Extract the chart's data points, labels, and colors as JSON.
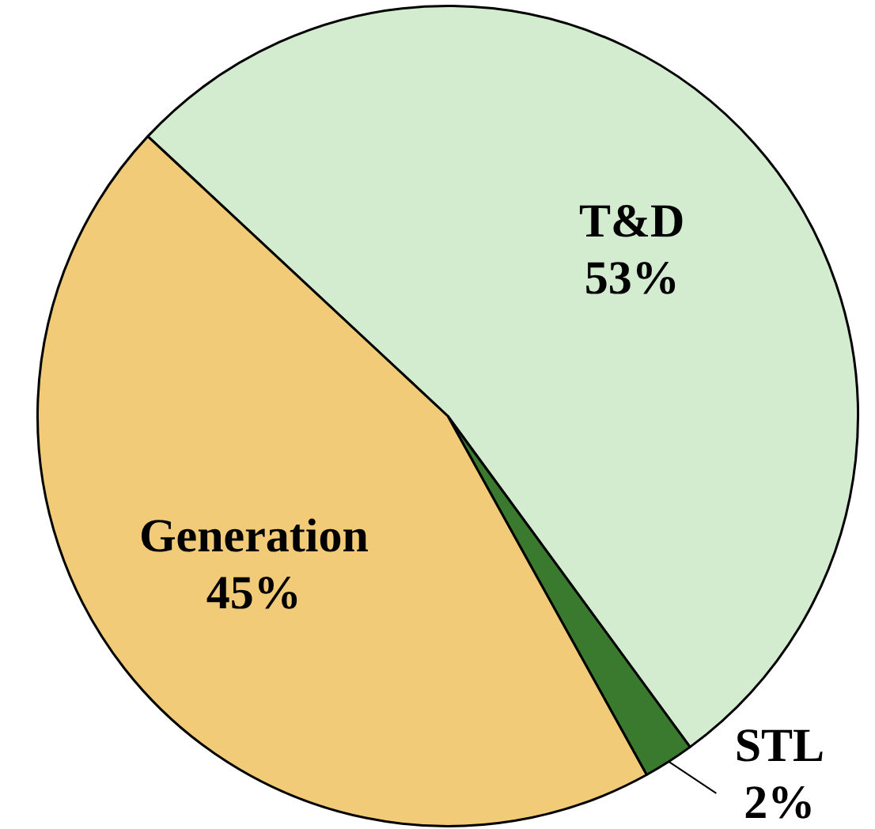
{
  "chart_data": {
    "type": "pie",
    "categories": [
      "T&D",
      "STL",
      "Generation"
    ],
    "values": [
      53,
      2,
      45
    ],
    "value_labels": [
      "53%",
      "2%",
      "45%"
    ],
    "colors": [
      "#d3ecd0",
      "#3a7a2e",
      "#f2cb78"
    ],
    "legend": false
  }
}
